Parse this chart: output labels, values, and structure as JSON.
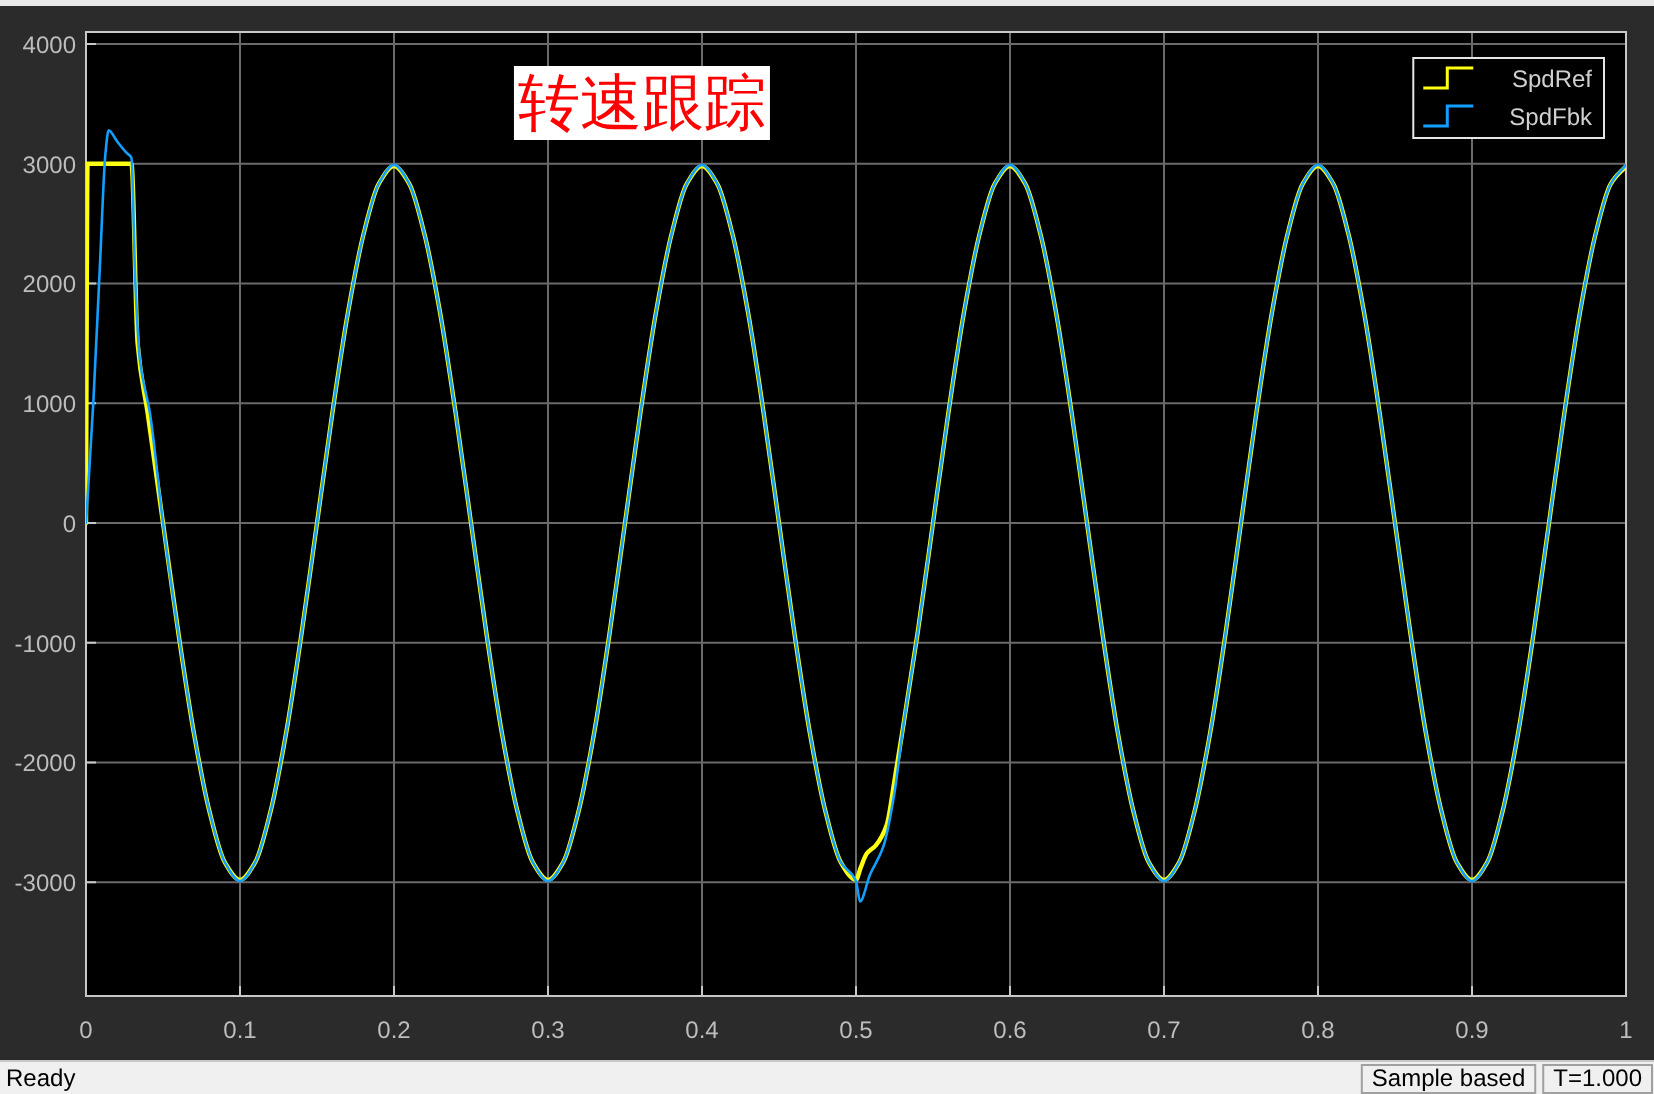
{
  "chart_data": {
    "type": "line",
    "title": "转速跟踪",
    "annotations": [
      "Ready",
      "Sample based",
      "T=1.000"
    ],
    "xlim": [
      0,
      1
    ],
    "xticks": [
      0,
      0.1,
      0.2,
      0.3,
      0.4,
      0.5,
      0.6,
      0.7,
      0.8,
      0.9,
      1
    ],
    "ylim": [
      -3950,
      4100
    ],
    "yticks": [
      -3000,
      -2000,
      -1000,
      0,
      1000,
      2000,
      3000,
      4000
    ],
    "grid": true,
    "legend": "top right",
    "series": [
      {
        "name": "SpdRef",
        "color": "#ffff11",
        "x": [
          0,
          0.001,
          0.0295,
          0.0335,
          0.04,
          0.05,
          0.06,
          0.07,
          0.08,
          0.09,
          0.1,
          0.11,
          0.12,
          0.13,
          0.14,
          0.15,
          0.16,
          0.17,
          0.18,
          0.19,
          0.2,
          0.21,
          0.22,
          0.23,
          0.24,
          0.25,
          0.26,
          0.27,
          0.28,
          0.29,
          0.3,
          0.31,
          0.32,
          0.33,
          0.34,
          0.35,
          0.36,
          0.37,
          0.38,
          0.39,
          0.4,
          0.41,
          0.42,
          0.43,
          0.44,
          0.45,
          0.46,
          0.47,
          0.48,
          0.49,
          0.5,
          0.503,
          0.507,
          0.513,
          0.52,
          0.525,
          0.53,
          0.54,
          0.55,
          0.56,
          0.57,
          0.58,
          0.59,
          0.6,
          0.61,
          0.62,
          0.63,
          0.64,
          0.65,
          0.66,
          0.67,
          0.68,
          0.69,
          0.7,
          0.71,
          0.72,
          0.73,
          0.74,
          0.75,
          0.76,
          0.77,
          0.78,
          0.79,
          0.8,
          0.81,
          0.82,
          0.83,
          0.84,
          0.85,
          0.86,
          0.87,
          0.88,
          0.89,
          0.9,
          0.91,
          0.92,
          0.93,
          0.94,
          0.95,
          0.96,
          0.97,
          0.98,
          0.99,
          1
        ],
        "values": [
          0,
          3000,
          3000,
          1500,
          920,
          0,
          -920,
          -1750,
          -2400,
          -2830,
          -2980,
          -2830,
          -2400,
          -1750,
          -920,
          0,
          920,
          1750,
          2400,
          2830,
          2980,
          2830,
          2400,
          1750,
          920,
          0,
          -920,
          -1750,
          -2400,
          -2830,
          -2980,
          -2830,
          -2400,
          -1750,
          -920,
          0,
          920,
          1750,
          2400,
          2830,
          2980,
          2830,
          2400,
          1750,
          920,
          0,
          -920,
          -1750,
          -2400,
          -2830,
          -2980,
          -2880,
          -2760,
          -2690,
          -2520,
          -2150,
          -1750,
          -920,
          0,
          920,
          1750,
          2400,
          2830,
          2980,
          2830,
          2400,
          1750,
          920,
          0,
          -920,
          -1750,
          -2400,
          -2830,
          -2980,
          -2830,
          -2400,
          -1750,
          -920,
          0,
          920,
          1750,
          2400,
          2830,
          2980,
          2830,
          2400,
          1750,
          920,
          0,
          -920,
          -1750,
          -2400,
          -2830,
          -2980,
          -2830,
          -2400,
          -1750,
          -920,
          0,
          920,
          1750,
          2400,
          2830,
          2980
        ]
      },
      {
        "name": "SpdFbk",
        "color": "#139fff",
        "x": [
          0,
          0.0048,
          0.009,
          0.0126,
          0.0147,
          0.02,
          0.0264,
          0.0295,
          0.032,
          0.035,
          0.0416,
          0.05,
          0.06,
          0.07,
          0.08,
          0.09,
          0.1,
          0.11,
          0.12,
          0.13,
          0.14,
          0.15,
          0.16,
          0.17,
          0.18,
          0.19,
          0.2,
          0.21,
          0.22,
          0.23,
          0.24,
          0.25,
          0.26,
          0.27,
          0.28,
          0.29,
          0.3,
          0.31,
          0.32,
          0.33,
          0.34,
          0.35,
          0.36,
          0.37,
          0.38,
          0.39,
          0.4,
          0.41,
          0.42,
          0.43,
          0.44,
          0.45,
          0.46,
          0.47,
          0.48,
          0.49,
          0.5,
          0.5026,
          0.509,
          0.5178,
          0.525,
          0.53,
          0.54,
          0.55,
          0.56,
          0.57,
          0.58,
          0.59,
          0.6,
          0.61,
          0.62,
          0.63,
          0.64,
          0.65,
          0.66,
          0.67,
          0.68,
          0.69,
          0.7,
          0.71,
          0.72,
          0.73,
          0.74,
          0.75,
          0.76,
          0.77,
          0.78,
          0.79,
          0.8,
          0.81,
          0.82,
          0.83,
          0.84,
          0.85,
          0.86,
          0.87,
          0.88,
          0.89,
          0.9,
          0.91,
          0.92,
          0.93,
          0.94,
          0.95,
          0.96,
          0.97,
          0.98,
          0.99,
          1
        ],
        "values": [
          0,
          1020,
          2140,
          3080,
          3280,
          3190,
          3090,
          3050,
          2020,
          1360,
          910,
          0,
          -920,
          -1750,
          -2400,
          -2830,
          -2990,
          -2830,
          -2400,
          -1750,
          -920,
          0,
          920,
          1750,
          2400,
          2830,
          2990,
          2830,
          2400,
          1750,
          920,
          0,
          -920,
          -1750,
          -2400,
          -2830,
          -2990,
          -2830,
          -2400,
          -1750,
          -920,
          0,
          920,
          1750,
          2400,
          2830,
          2990,
          2830,
          2400,
          1750,
          920,
          0,
          -920,
          -1750,
          -2400,
          -2830,
          -2990,
          -3160,
          -2940,
          -2700,
          -2250,
          -1760,
          -920,
          0,
          920,
          1750,
          2400,
          2830,
          2990,
          2830,
          2400,
          1750,
          920,
          0,
          -920,
          -1750,
          -2400,
          -2830,
          -2990,
          -2830,
          -2400,
          -1750,
          -920,
          0,
          920,
          1750,
          2400,
          2830,
          2990,
          2830,
          2400,
          1750,
          920,
          0,
          -920,
          -1750,
          -2400,
          -2830,
          -2990,
          -2830,
          -2400,
          -1750,
          -920,
          0,
          920,
          1750,
          2400,
          2830,
          2990
        ]
      }
    ]
  }
}
